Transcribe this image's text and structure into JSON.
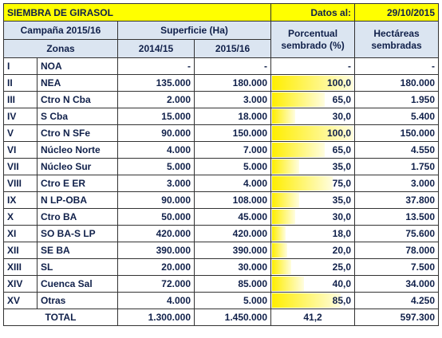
{
  "header": {
    "title": "SIEMBRA DE GIRASOL",
    "date_label": "Datos al:",
    "date": "29/10/2015"
  },
  "table": {
    "columns": [
      "Campaña 2015/16",
      "Superficie (Ha)",
      "Porcentual sembrado (%)",
      "Hectáreas sembradas"
    ],
    "subheader": [
      "Zonas",
      "2014/15",
      "2015/16"
    ],
    "rows": [
      [
        "I",
        "NOA",
        "-",
        "-",
        "-",
        "-"
      ],
      [
        "II",
        "NEA",
        "135.000",
        "180.000",
        "100,0",
        "180.000"
      ],
      [
        "III",
        "Ctro N Cba",
        "2.000",
        "3.000",
        "65,0",
        "1.950"
      ],
      [
        "IV",
        "S Cba",
        "15.000",
        "18.000",
        "30,0",
        "5.400"
      ],
      [
        "V",
        "Ctro N SFe",
        "90.000",
        "150.000",
        "100,0",
        "150.000"
      ],
      [
        "VI",
        "Núcleo Norte",
        "4.000",
        "7.000",
        "65,0",
        "4.550"
      ],
      [
        "VII",
        "Núcleo Sur",
        "5.000",
        "5.000",
        "35,0",
        "1.750"
      ],
      [
        "VIII",
        "Ctro E ER",
        "3.000",
        "4.000",
        "75,0",
        "3.000"
      ],
      [
        "IX",
        "N LP-OBA",
        "90.000",
        "108.000",
        "35,0",
        "37.800"
      ],
      [
        "X",
        "Ctro BA",
        "50.000",
        "45.000",
        "30,0",
        "13.500"
      ],
      [
        "XI",
        "SO BA-S LP",
        "420.000",
        "420.000",
        "18,0",
        "75.600"
      ],
      [
        "XII",
        "SE BA",
        "390.000",
        "390.000",
        "20,0",
        "78.000"
      ],
      [
        "XIII",
        "SL",
        "20.000",
        "30.000",
        "25,0",
        "7.500"
      ],
      [
        "XIV",
        "Cuenca Sal",
        "72.000",
        "85.000",
        "40,0",
        "34.000"
      ],
      [
        "XV",
        "Otras",
        "4.000",
        "5.000",
        "85,0",
        "4.250"
      ]
    ],
    "total": [
      "TOTAL",
      "1.300.000",
      "1.450.000",
      "41,2",
      "597.300"
    ]
  }
}
